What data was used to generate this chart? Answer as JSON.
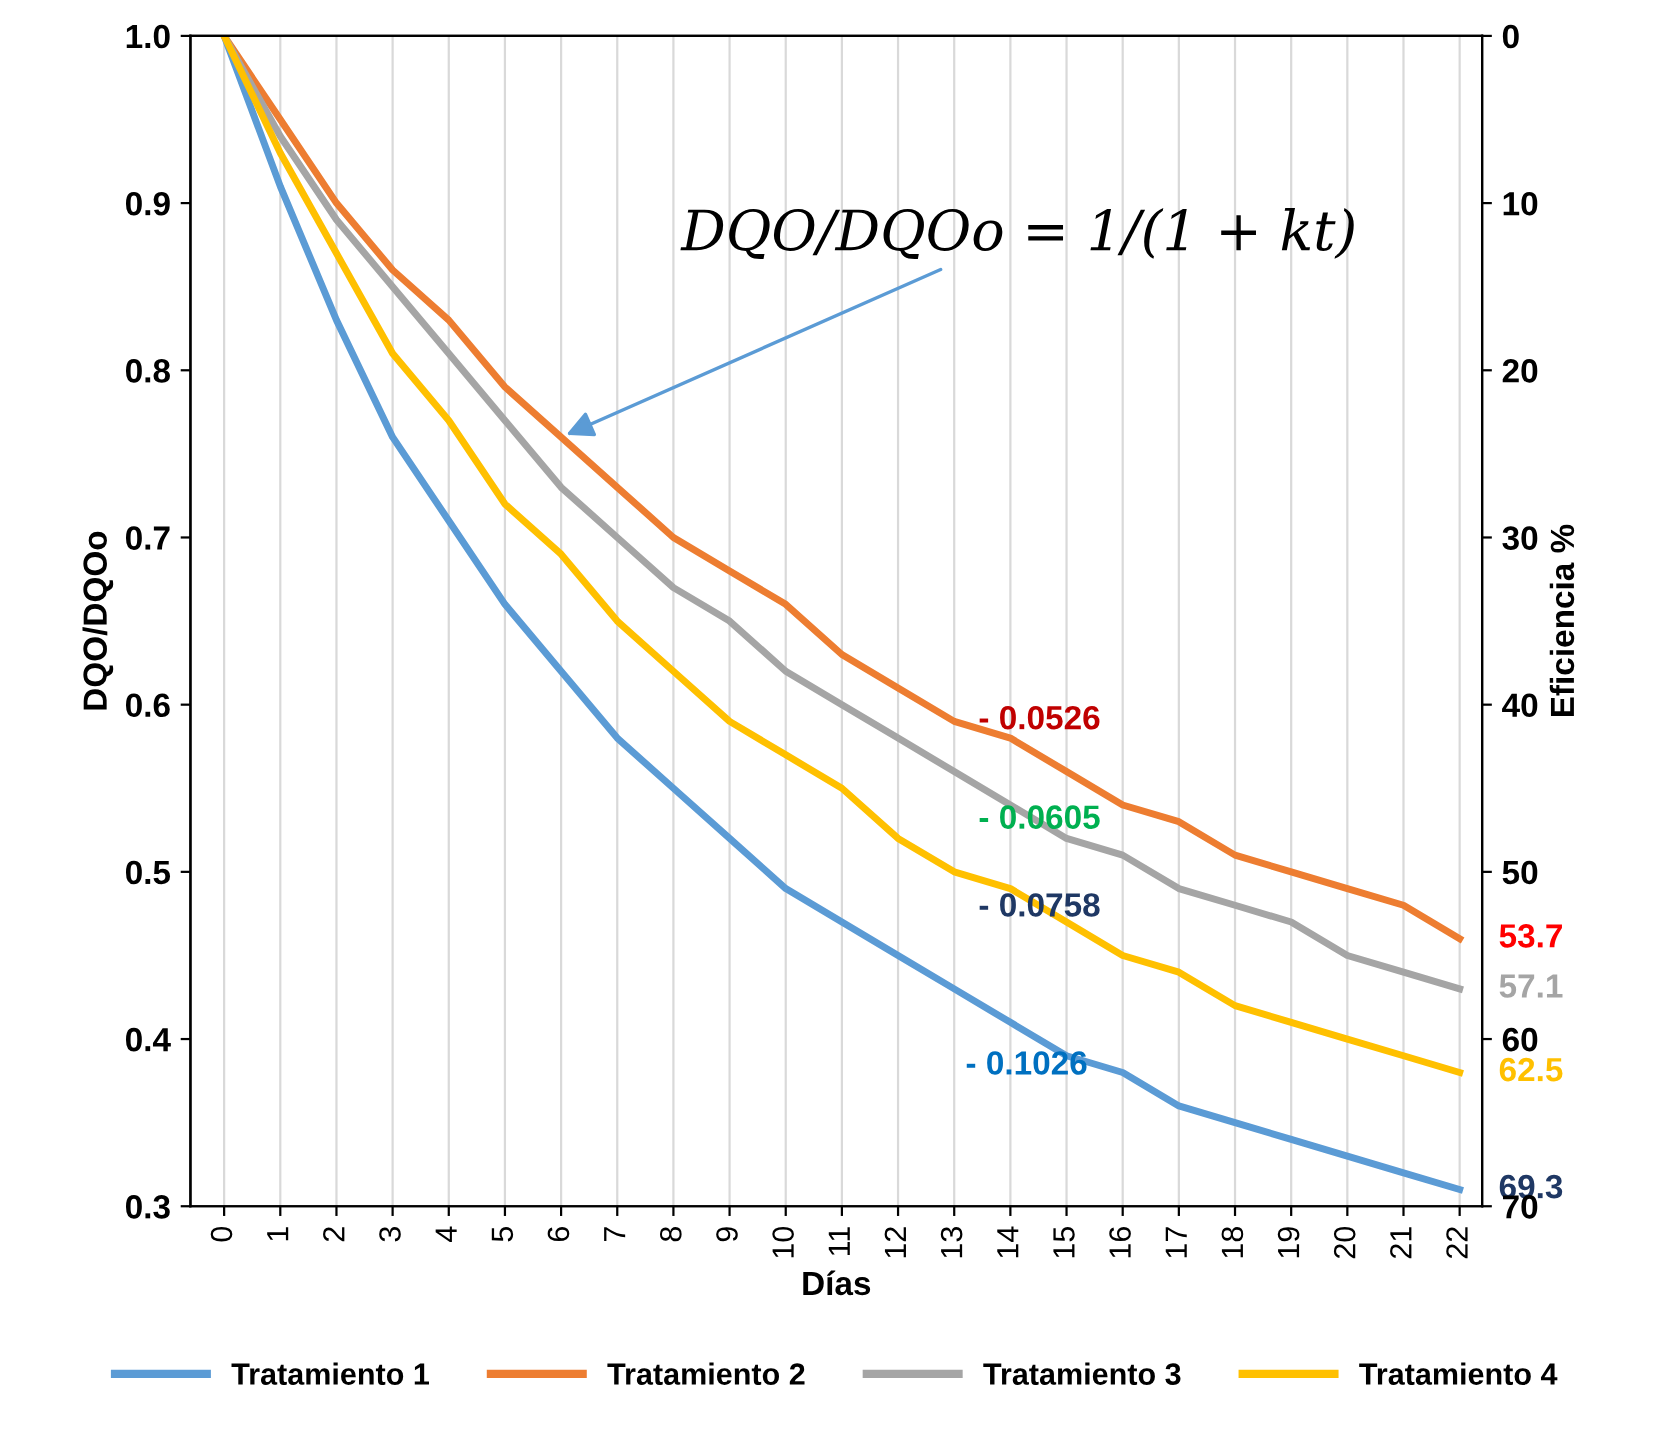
{
  "chart_data": {
    "type": "line",
    "xlabel": "Días",
    "ylabel": "DQO/DQOo",
    "y2label": "Eficiencia %",
    "categories": [
      "0",
      "1",
      "2",
      "3",
      "4",
      "5",
      "6",
      "7",
      "8",
      "9",
      "10",
      "11",
      "12",
      "13",
      "14",
      "15",
      "16",
      "17",
      "18",
      "19",
      "20",
      "21",
      "22"
    ],
    "series": [
      {
        "name": "Tratamiento 1",
        "color": "#5b9bd5",
        "values": [
          1,
          0.91,
          0.83,
          0.76,
          0.71,
          0.66,
          0.62,
          0.58,
          0.55,
          0.52,
          0.49,
          0.47,
          0.45,
          0.43,
          0.41,
          0.39,
          0.38,
          0.36,
          0.35,
          0.34,
          0.33,
          0.32,
          0.31
        ]
      },
      {
        "name": "Tratamiento 2",
        "color": "#ed7d31",
        "values": [
          1,
          0.95,
          0.9,
          0.86,
          0.83,
          0.79,
          0.76,
          0.73,
          0.7,
          0.68,
          0.66,
          0.63,
          0.61,
          0.59,
          0.58,
          0.56,
          0.54,
          0.53,
          0.51,
          0.5,
          0.49,
          0.48,
          0.46
        ]
      },
      {
        "name": "Tratamiento 3",
        "color": "#a5a5a5",
        "values": [
          1,
          0.94,
          0.89,
          0.85,
          0.81,
          0.77,
          0.73,
          0.7,
          0.67,
          0.65,
          0.62,
          0.6,
          0.58,
          0.56,
          0.54,
          0.52,
          0.51,
          0.49,
          0.48,
          0.47,
          0.45,
          0.44,
          0.43
        ]
      },
      {
        "name": "Tratamiento 4",
        "color": "#ffc000",
        "values": [
          1,
          0.93,
          0.87,
          0.81,
          0.77,
          0.72,
          0.69,
          0.65,
          0.62,
          0.59,
          0.57,
          0.55,
          0.52,
          0.5,
          0.49,
          0.47,
          0.45,
          0.44,
          0.42,
          0.41,
          0.4,
          0.39,
          0.38
        ]
      }
    ],
    "ylim": [
      0.3,
      1.0
    ],
    "yticks": [
      {
        "value": 0.3,
        "label": "0.3"
      },
      {
        "value": 0.4,
        "label": "0.4"
      },
      {
        "value": 0.5,
        "label": "0.5"
      },
      {
        "value": 0.6,
        "label": "0.6"
      },
      {
        "value": 0.7,
        "label": "0.7"
      },
      {
        "value": 0.8,
        "label": "0.8"
      },
      {
        "value": 0.9,
        "label": "0.9"
      },
      {
        "value": 1.0,
        "label": "1.0"
      }
    ],
    "y2lim": [
      70,
      0
    ],
    "y2ticks": [
      0,
      10,
      20,
      30,
      40,
      50,
      60,
      70
    ],
    "grid": "x",
    "legend": "bottom",
    "marker": "none",
    "line_style": "solid",
    "annotations": [
      {
        "text": "DQO/DQOo = 1/(1 + kt)",
        "x": "6",
        "y": 0.76
      },
      "- 0.0526",
      "- 0.0605",
      "- 0.0758",
      "- 0.1026",
      {
        "text": "53.7",
        "x": "22",
        "y": 0.46
      },
      {
        "text": "57.1",
        "x": "22",
        "y": 0.43
      },
      {
        "text": "62.5",
        "x": "22",
        "y": 0.38
      },
      {
        "text": "69.3",
        "x": "22",
        "y": 0.31
      }
    ]
  }
}
